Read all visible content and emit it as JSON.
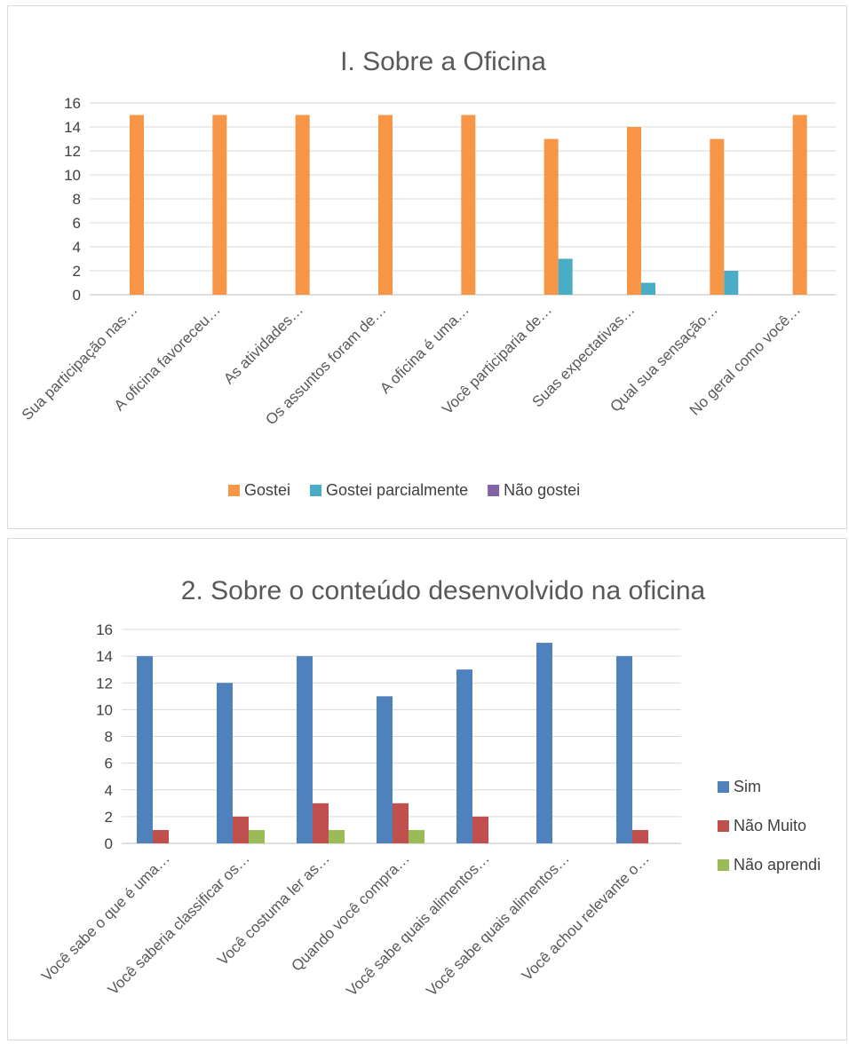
{
  "chart_data": [
    {
      "type": "bar",
      "title": "I. Sobre a Oficina",
      "categories": [
        "Sua participação nas…",
        "A oficina favoreceu…",
        "As atividades…",
        "Os assuntos foram de…",
        "A oficina é uma…",
        "Você participaria de…",
        "Suas expectativas…",
        "Qual sua sensação…",
        "No geral como você…"
      ],
      "series": [
        {
          "name": "Gostei",
          "color": "#f79646",
          "values": [
            15,
            15,
            15,
            15,
            15,
            13,
            14,
            13,
            15
          ]
        },
        {
          "name": "Gostei parcialmente",
          "color": "#4bacc6",
          "values": [
            0,
            0,
            0,
            0,
            0,
            3,
            1,
            2,
            0
          ]
        },
        {
          "name": "Não gostei",
          "color": "#8064a2",
          "values": [
            0,
            0,
            0,
            0,
            0,
            0,
            0,
            0,
            0
          ]
        }
      ],
      "ylim": [
        0,
        16
      ],
      "yticks": [
        "0",
        "2",
        "4",
        "6",
        "8",
        "10",
        "12",
        "14",
        "16"
      ],
      "grid": true,
      "legend": "bottom"
    },
    {
      "type": "bar",
      "title": "2. Sobre o conteúdo desenvolvido na oficina",
      "categories": [
        "Você sabe o que é uma…",
        "Você saberia classificar os…",
        "Você costuma ler as…",
        "Quando você compra…",
        "Você sabe quais alimentos…",
        "Você sabe quais alimentos…",
        "Você achou relevante o…"
      ],
      "series": [
        {
          "name": "Sim",
          "color": "#4f81bd",
          "values": [
            14,
            12,
            14,
            11,
            13,
            15,
            14
          ]
        },
        {
          "name": "Não Muito",
          "color": "#c0504d",
          "values": [
            1,
            2,
            3,
            3,
            2,
            0,
            1
          ]
        },
        {
          "name": "Não aprendi",
          "color": "#9bbb59",
          "values": [
            0,
            1,
            1,
            1,
            0,
            0,
            0
          ]
        }
      ],
      "ylim": [
        0,
        16
      ],
      "yticks": [
        "0",
        "2",
        "4",
        "6",
        "8",
        "10",
        "12",
        "14",
        "16"
      ],
      "grid": true,
      "legend": "right"
    }
  ]
}
